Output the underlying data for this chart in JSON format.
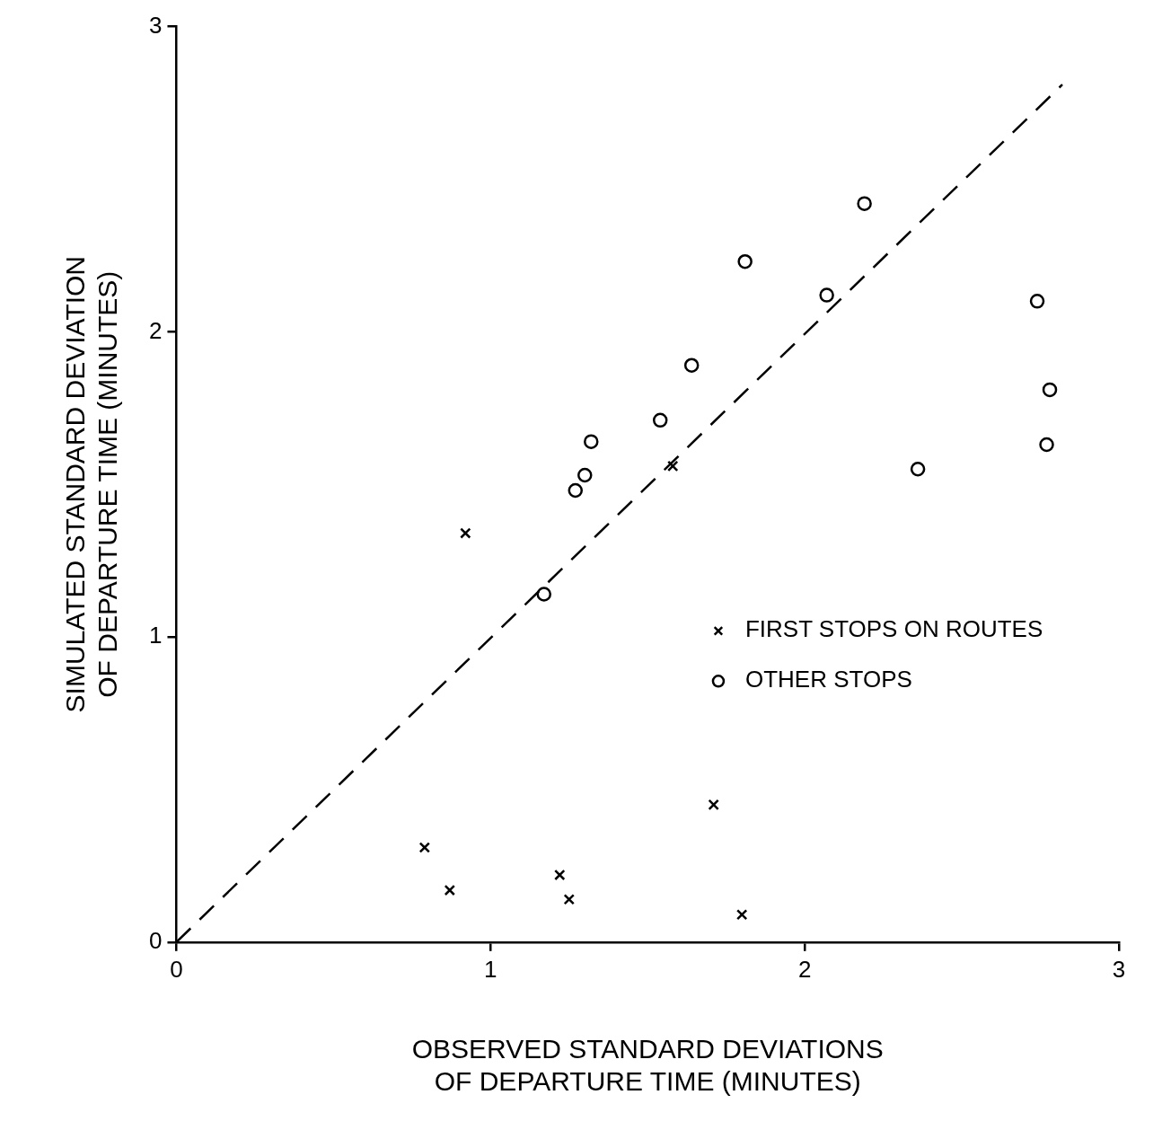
{
  "chart_data": {
    "type": "scatter",
    "xlabel": "OBSERVED STANDARD DEVIATIONS\nOF DEPARTURE TIME (MINUTES)",
    "ylabel": "SIMULATED STANDARD DEVIATION\nOF DEPARTURE TIME (MINUTES)",
    "xlim": [
      0,
      3
    ],
    "ylim": [
      0,
      3
    ],
    "xticks": [
      0,
      1,
      2,
      3
    ],
    "yticks": [
      0,
      1,
      2,
      3
    ],
    "grid": false,
    "legend": "right",
    "series": [
      {
        "name": "FIRST STOPS ON ROUTES",
        "color": "#000000",
        "marker": "cross",
        "x": [
          0.92,
          1.58,
          0.79,
          0.87,
          1.22,
          1.25,
          1.71,
          1.8
        ],
        "values": [
          1.34,
          1.56,
          0.31,
          0.17,
          0.22,
          0.14,
          0.45,
          0.09
        ]
      },
      {
        "name": "OTHER STOPS",
        "color": "#000000",
        "marker": "circle",
        "x": [
          1.17,
          1.27,
          1.3,
          1.32,
          1.54,
          1.64,
          1.81,
          2.07,
          2.19,
          2.74,
          2.78,
          2.77,
          2.36
        ],
        "values": [
          1.14,
          1.48,
          1.53,
          1.64,
          1.71,
          1.89,
          2.23,
          2.12,
          2.42,
          2.1,
          1.81,
          1.63,
          1.55
        ]
      },
      {
        "type": "line",
        "color": "#000000",
        "marker": "none",
        "line_style": "dashed",
        "x": [
          0,
          2.82
        ],
        "values": [
          0,
          2.81
        ]
      }
    ]
  }
}
